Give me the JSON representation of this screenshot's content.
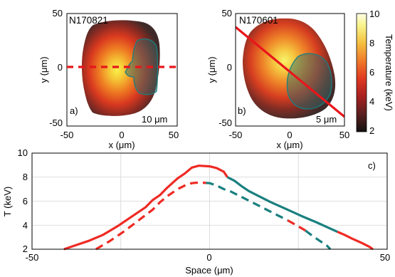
{
  "colors": {
    "solid_red": "#ef2a24",
    "teal": "#1a7f7f",
    "cut_red": "#e8161b",
    "hot_core": "#f5f060",
    "colormap": [
      "#141010",
      "#5a2020",
      "#a82020",
      "#e03a22",
      "#f07a2a",
      "#f5c040",
      "#f8f48a",
      "#fffde8"
    ]
  },
  "panel_a": {
    "label": "a)",
    "shot": "N170821",
    "scalebar": "10 μm",
    "xlabel": "x (μm)",
    "ylabel": "y (μm)",
    "xticks": [
      "-50",
      "0",
      "50"
    ],
    "yticks": [
      "50",
      "0",
      "-50"
    ],
    "xlim": [
      -50,
      50
    ],
    "ylim": [
      -50,
      50
    ]
  },
  "panel_b": {
    "label": "b)",
    "shot": "N170601",
    "scalebar": "5 μm",
    "xlabel": "x (μm)",
    "ylabel": "y (μm)",
    "xticks": [
      "-50",
      "0",
      "50"
    ],
    "yticks": [
      "50",
      "0",
      "-50"
    ],
    "xlim": [
      -50,
      50
    ],
    "ylim": [
      -50,
      50
    ]
  },
  "colorbar": {
    "label": "Temperature (keV)",
    "ticks": [
      "10",
      "8",
      "6",
      "4",
      "2"
    ],
    "range": [
      2,
      10
    ]
  },
  "chart_data": {
    "type": "line",
    "panel_label": "c)",
    "xlabel": "Space (μm)",
    "ylabel": "T (keV)",
    "xlim": [
      -50,
      50
    ],
    "ylim": [
      2,
      10
    ],
    "xticks": [
      "-50",
      "0",
      "50"
    ],
    "yticks": [
      "10",
      "8",
      "6",
      "4",
      "2"
    ],
    "grid": true,
    "series": [
      {
        "style": "solid",
        "points": [
          [
            -41,
            2.0
          ],
          [
            -38,
            2.3
          ],
          [
            -34,
            2.7
          ],
          [
            -30,
            3.2
          ],
          [
            -26,
            3.9
          ],
          [
            -22,
            4.7
          ],
          [
            -18,
            5.5
          ],
          [
            -16,
            6.1
          ],
          [
            -14,
            6.5
          ],
          [
            -12,
            7.1
          ],
          [
            -9,
            7.9
          ],
          [
            -7,
            8.3
          ],
          [
            -5,
            8.8
          ],
          [
            -3,
            8.95
          ],
          [
            0,
            8.9
          ],
          [
            2,
            8.75
          ],
          [
            4,
            8.45
          ],
          [
            5,
            8.0
          ],
          [
            7,
            7.7
          ],
          [
            9,
            7.25
          ],
          [
            11,
            6.85
          ],
          [
            14,
            6.4
          ],
          [
            17,
            5.95
          ],
          [
            20,
            5.55
          ],
          [
            23,
            5.15
          ],
          [
            26,
            4.75
          ],
          [
            30,
            4.25
          ],
          [
            33,
            3.85
          ],
          [
            36,
            3.45
          ],
          [
            38,
            3.2
          ],
          [
            40,
            2.9
          ],
          [
            43,
            2.5
          ],
          [
            45,
            2.2
          ],
          [
            46,
            2.0
          ]
        ],
        "segments": [
          [
            -41,
            5,
            "#ef2a24"
          ],
          [
            5,
            36,
            "#1a7f7f"
          ],
          [
            36,
            46,
            "#ef2a24"
          ]
        ]
      },
      {
        "style": "dashed",
        "points": [
          [
            -32,
            2.0
          ],
          [
            -28,
            2.7
          ],
          [
            -24,
            3.5
          ],
          [
            -20,
            4.4
          ],
          [
            -16,
            5.3
          ],
          [
            -14,
            5.9
          ],
          [
            -12,
            6.4
          ],
          [
            -9,
            7.0
          ],
          [
            -7,
            7.3
          ],
          [
            -5,
            7.5
          ],
          [
            -3,
            7.55
          ],
          [
            0,
            7.5
          ],
          [
            2,
            7.3
          ],
          [
            4,
            7.0
          ],
          [
            6,
            6.8
          ],
          [
            8,
            6.5
          ],
          [
            10,
            6.2
          ],
          [
            13,
            5.75
          ],
          [
            16,
            5.3
          ],
          [
            19,
            4.85
          ],
          [
            22,
            4.4
          ],
          [
            25,
            3.9
          ],
          [
            27,
            3.55
          ],
          [
            29,
            3.1
          ],
          [
            31,
            2.7
          ],
          [
            33,
            2.3
          ],
          [
            34,
            2.0
          ]
        ],
        "segments": [
          [
            -32,
            -1,
            "#ef2a24"
          ],
          [
            -1,
            22,
            "#1a7f7f"
          ],
          [
            22,
            27,
            "#ef2a24"
          ],
          [
            27,
            34,
            "#1a7f7f"
          ]
        ]
      }
    ]
  }
}
